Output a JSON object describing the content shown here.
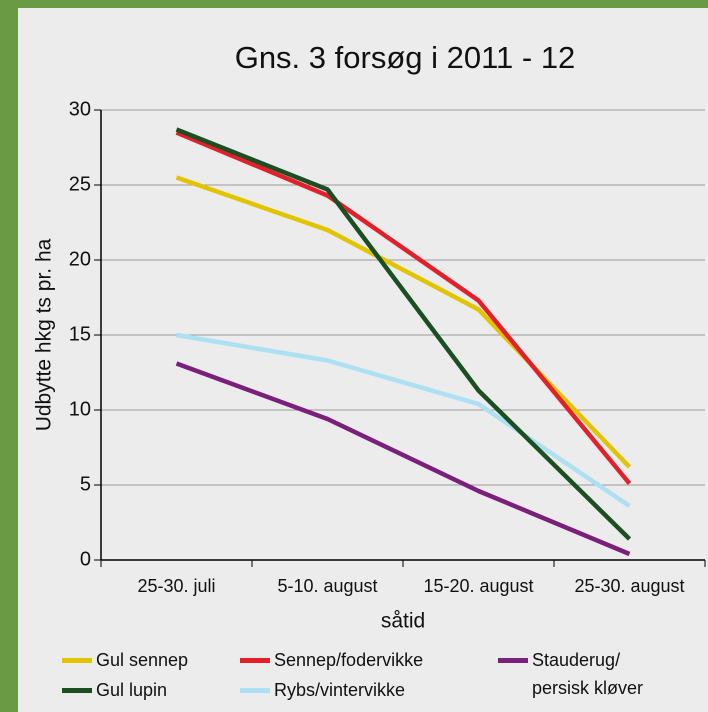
{
  "chart_data": {
    "type": "line",
    "title": "Gns. 3 forsøg i 2011 - 12",
    "y_label": "Udbytte hkg ts pr. ha",
    "x_label": "såtid",
    "categories": [
      "25-30. juli",
      "5-10. august",
      "15-20. august",
      "25-30. august"
    ],
    "ylim": [
      0,
      30
    ],
    "yticks": [
      0,
      5,
      10,
      15,
      20,
      25,
      30
    ],
    "grid": true,
    "series": [
      {
        "name": "Gul sennep",
        "color": "#e3c400",
        "values": [
          25.5,
          22,
          16.7,
          6.2
        ]
      },
      {
        "name": "Gul lupin",
        "color": "#1b4f22",
        "values": [
          28.7,
          24.7,
          11.3,
          1.4
        ]
      },
      {
        "name": "Sennep/fodervikke",
        "color": "#e3202a",
        "values": [
          28.5,
          24.3,
          17.3,
          5.1
        ]
      },
      {
        "name": "Rybs/vintervikke",
        "color": "#ace0f3",
        "values": [
          15,
          13.3,
          10.4,
          3.6
        ]
      },
      {
        "name": "Stauderug/ persisk kløver",
        "color": "#7b1f7c",
        "values": [
          13.1,
          9.4,
          4.6,
          0.4
        ]
      }
    ]
  }
}
